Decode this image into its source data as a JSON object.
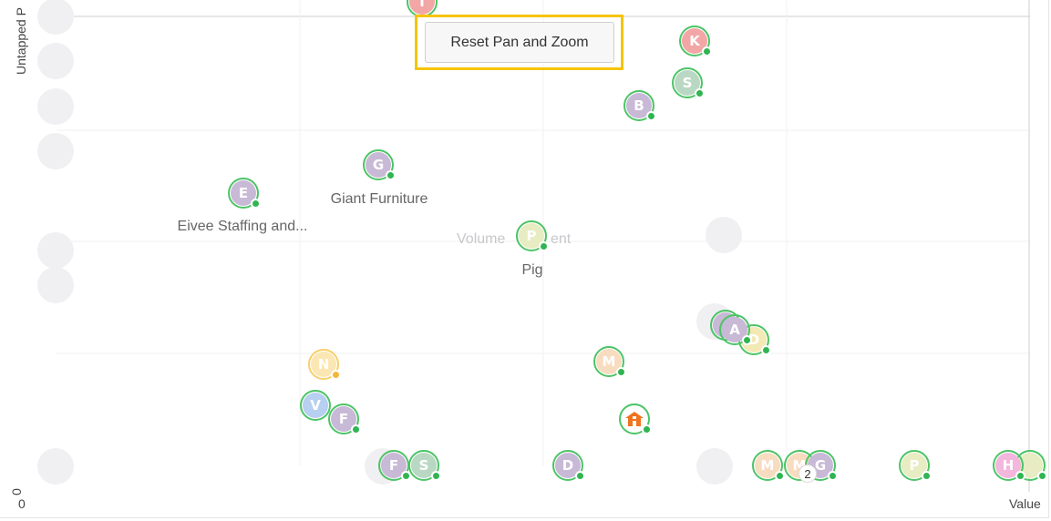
{
  "axes": {
    "y_label": "Untapped P",
    "y_origin": "0",
    "x_origin": "0",
    "x_label": "Value"
  },
  "controls": {
    "reset_label": "Reset Pan and Zoom"
  },
  "quadrant_labels": {
    "center": "Volume",
    "center_tail": "ent"
  },
  "colors": {
    "status_ok": "#2fb552",
    "status_warn": "#f5b73a",
    "bubble_border": "#4cc466",
    "highlight": "#f5c400"
  },
  "points": [
    {
      "initial": "T",
      "color": "#f2a6a6"
    },
    {
      "initial": "K",
      "color": "#f2a6a6"
    },
    {
      "initial": "S",
      "color": "#b9d8c4"
    },
    {
      "initial": "B",
      "color": "#c8b9d6"
    },
    {
      "initial": "G",
      "color": "#c8b9d6",
      "name": "Giant Furniture"
    },
    {
      "initial": "E",
      "color": "#c8b9d6",
      "name": "Eivee Staffing and..."
    },
    {
      "initial": "P",
      "color": "#e7ecc2",
      "name": "Pig"
    },
    {
      "initial": "A",
      "color": "#c8b9d6"
    },
    {
      "initial": "D",
      "color": "#f3e9b5"
    },
    {
      "initial": "N",
      "color": "#fbe7b3"
    },
    {
      "initial": "M",
      "color": "#f8dcc0"
    },
    {
      "initial": "V",
      "color": "#b7cff0"
    },
    {
      "initial": "F",
      "color": "#c8b9d6"
    },
    {
      "initial": "F",
      "color": "#c8b9d6"
    },
    {
      "initial": "S",
      "color": "#b9d8c4"
    },
    {
      "initial": "D",
      "color": "#c8b9d6"
    },
    {
      "initial": "M",
      "color": "#f8dcc0"
    },
    {
      "initial": "M",
      "color": "#f8dcc0"
    },
    {
      "initial": "G",
      "color": "#c8b9d6"
    },
    {
      "initial": "P",
      "color": "#e7ecc2"
    },
    {
      "initial": "H",
      "color": "#f3b6dc"
    },
    {
      "initial": "",
      "color": "#e7ecc2"
    }
  ],
  "cluster_count": "2"
}
